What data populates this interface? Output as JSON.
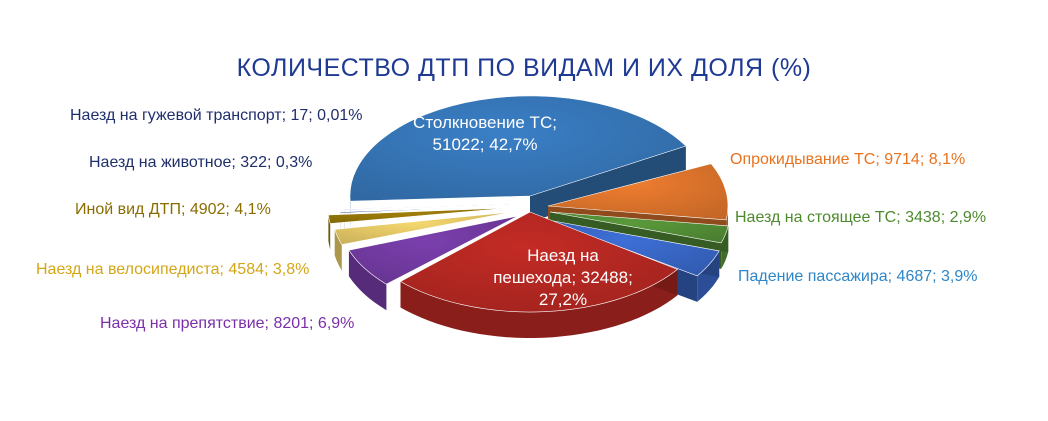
{
  "chart_data": {
    "type": "pie",
    "title": "КОЛИЧЕСТВО ДТП ПО ВИДАМ И ИХ ДОЛЯ (%)",
    "slices": [
      {
        "id": "collision",
        "label": "Столкновение ТС;\n51022; 42,7%",
        "value": 51022,
        "percent": 42.7,
        "color": "#3a7fc6"
      },
      {
        "id": "overturn",
        "label": "Опрокидывание ТС; 9714; 8,1%",
        "value": 9714,
        "percent": 8.1,
        "color": "#ef7d2f"
      },
      {
        "id": "parked",
        "label": "Наезд на стоящее ТС; 3438; 2,9%",
        "value": 3438,
        "percent": 2.9,
        "color": "#5a9a3a"
      },
      {
        "id": "passenger",
        "label": "Падение пассажира; 4687; 3,9%",
        "value": 4687,
        "percent": 3.9,
        "color": "#3d6fd6"
      },
      {
        "id": "pedestrian",
        "label": "Наезд на\nпешехода; 32488;\n27,2%",
        "value": 32488,
        "percent": 27.2,
        "color": "#c42b25"
      },
      {
        "id": "obstacle",
        "label": "Наезд на препятствие; 8201; 6,9%",
        "value": 8201,
        "percent": 6.9,
        "color": "#7b3fae"
      },
      {
        "id": "cyclist",
        "label": "Наезд на велосипедиста; 4584; 3,8%",
        "value": 4584,
        "percent": 3.8,
        "color": "#f5d76e"
      },
      {
        "id": "other",
        "label": "Иной вид ДТП; 4902; 4,1%",
        "value": 4902,
        "percent": 4.1,
        "color": "#a07f08"
      },
      {
        "id": "animal",
        "label": "Наезд на животное; 322; 0,3%",
        "value": 322,
        "percent": 0.3,
        "color": "#2e4aa0"
      },
      {
        "id": "horse-drawn",
        "label": "Наезд на гужевой транспорт; 17; 0,01%",
        "value": 17,
        "percent": 0.01,
        "color": "#1a2f7a"
      }
    ],
    "label_colors": {
      "collision": "#ffffff",
      "overturn": "#e8731f",
      "parked": "#4d8a2d",
      "passenger": "#2e86c9",
      "pedestrian": "#ffffff",
      "obstacle": "#7a2fa8",
      "cyclist": "#d4a616",
      "other": "#8a6d00",
      "animal": "#1f2f6b",
      "horse-drawn": "#1f2f6b"
    }
  }
}
